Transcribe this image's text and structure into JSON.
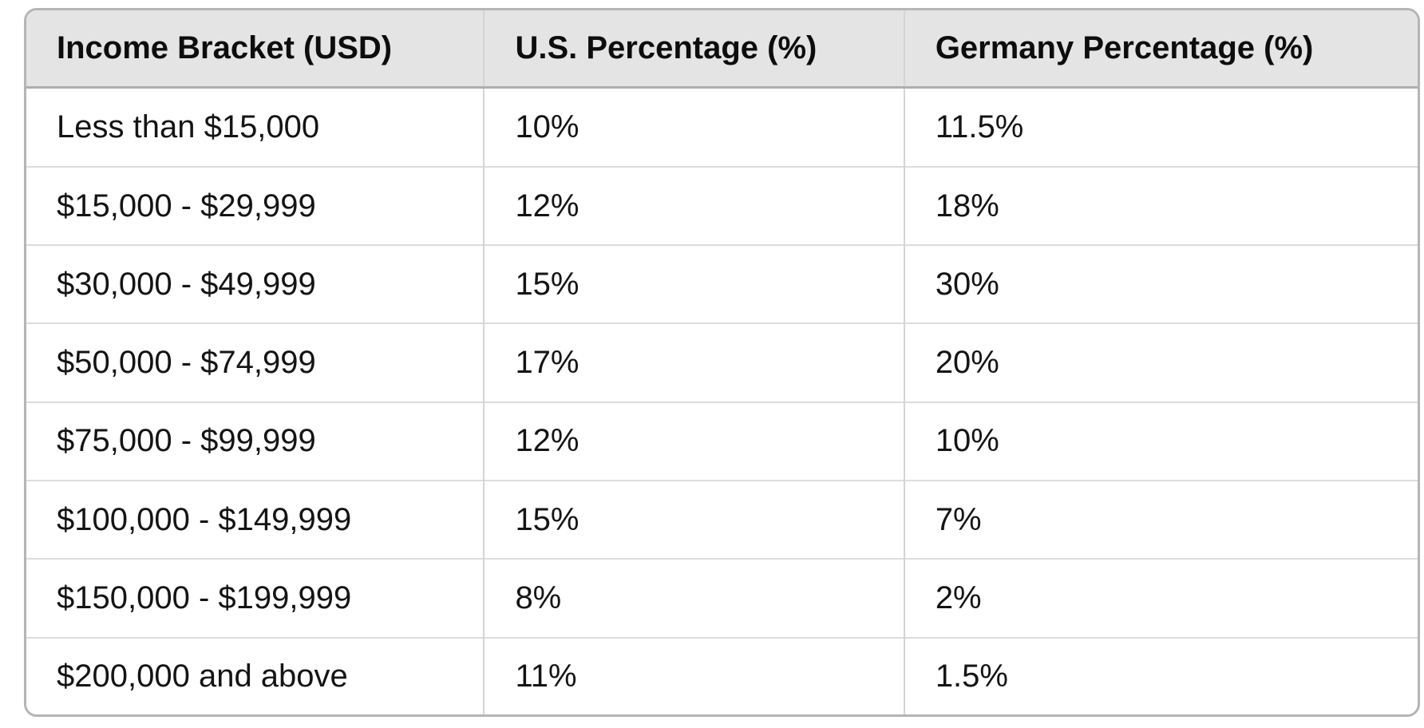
{
  "table": {
    "columns": [
      {
        "label": "Income Bracket (USD)"
      },
      {
        "label": "U.S. Percentage (%)"
      },
      {
        "label": "Germany Percentage (%)"
      }
    ],
    "rows": [
      {
        "bracket": "Less than $15,000",
        "us": "10%",
        "germany": "11.5%"
      },
      {
        "bracket": "$15,000 - $29,999",
        "us": "12%",
        "germany": "18%"
      },
      {
        "bracket": "$30,000 - $49,999",
        "us": "15%",
        "germany": "30%"
      },
      {
        "bracket": "$50,000 - $74,999",
        "us": "17%",
        "germany": "20%"
      },
      {
        "bracket": "$75,000 - $99,999",
        "us": "12%",
        "germany": "10%"
      },
      {
        "bracket": "$100,000 - $149,999",
        "us": "15%",
        "germany": "7%"
      },
      {
        "bracket": "$150,000 - $199,999",
        "us": "8%",
        "germany": "2%"
      },
      {
        "bracket": "$200,000 and above",
        "us": "11%",
        "germany": "1.5%"
      }
    ]
  },
  "chart_data": {
    "type": "table",
    "columns": [
      "Income Bracket (USD)",
      "U.S. Percentage (%)",
      "Germany Percentage (%)"
    ],
    "categories": [
      "Less than $15,000",
      "$15,000 - $29,999",
      "$30,000 - $49,999",
      "$50,000 - $74,999",
      "$75,000 - $99,999",
      "$100,000 - $149,999",
      "$150,000 - $199,999",
      "$200,000 and above"
    ],
    "series": [
      {
        "name": "U.S. Percentage (%)",
        "values": [
          10,
          12,
          15,
          17,
          12,
          15,
          8,
          11
        ]
      },
      {
        "name": "Germany Percentage (%)",
        "values": [
          11.5,
          18,
          30,
          20,
          10,
          7,
          2,
          1.5
        ]
      }
    ]
  },
  "colors": {
    "header_background": "#e4e4e4",
    "outer_border": "#b5b5b5",
    "header_separator": "#aeaeae",
    "grid_line": "#dcdcdc",
    "column_line": "#d4d4d4",
    "text": "#141414",
    "page_background": "#ffffff"
  }
}
